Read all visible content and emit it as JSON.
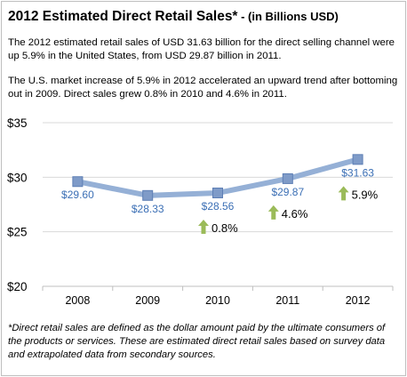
{
  "header": {
    "title": "2012 Estimated Direct Retail Sales*",
    "subtitle": " - (in Billions USD)"
  },
  "paragraphs": [
    "The 2012 estimated retail sales of USD 31.63 billion for the direct selling channel were up 5.9% in the United States, from USD 29.87 billion in 2011.",
    "The U.S. market increase of 5.9% in 2012 accelerated an upward trend after bottoming out in 2009. Direct sales grew 0.8% in 2010 and 4.6% in 2011."
  ],
  "footnote": "*Direct retail sales are defined as the dollar amount paid by the ultimate consumers of the products or services. These are estimated direct retail sales based on survey data and extrapolated data from secondary sources.",
  "colors": {
    "line": "#95b0d6",
    "marker": "#7f9bc8",
    "value_label": "#3b6fb5",
    "arrow": "#9bbb59",
    "grid": "#d9d9d9",
    "axis": "#bfbfbf"
  },
  "chart_data": {
    "type": "line",
    "categories": [
      "2008",
      "2009",
      "2010",
      "2011",
      "2012"
    ],
    "series": [
      {
        "values": [
          29.6,
          28.33,
          28.56,
          29.87,
          31.63
        ]
      }
    ],
    "value_labels": [
      "$29.60",
      "$28.33",
      "$28.56",
      "$29.87",
      "$31.63"
    ],
    "growth_annotations": [
      {
        "category": "2010",
        "label": "0.8%"
      },
      {
        "category": "2011",
        "label": "4.6%"
      },
      {
        "category": "2012",
        "label": "5.9%"
      }
    ],
    "y_ticks": [
      20,
      25,
      30,
      35
    ],
    "y_tick_labels": [
      "$20",
      "$25",
      "$30",
      "$35"
    ],
    "ylim": [
      20,
      35
    ],
    "grid": true
  }
}
